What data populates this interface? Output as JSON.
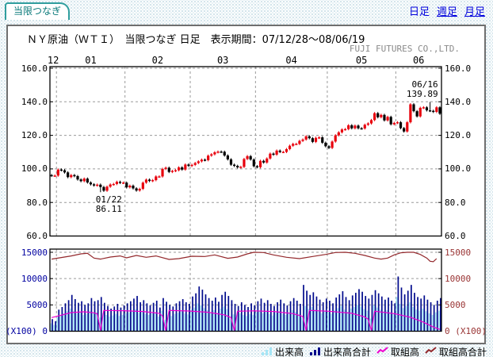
{
  "tab": {
    "label": "当限つなぎ"
  },
  "nav_links": {
    "daily": "日足",
    "weekly": "週足",
    "monthly": "月足"
  },
  "header": {
    "title": "ＮＹ原油（ＷＴＩ）　当限つなぎ 日足　表示期間：07/12/28～08/06/19",
    "company": "FUJI FUTURES CO.,LTD."
  },
  "colors": {
    "link": "#0000dd",
    "tab_border": "#2f9e9e",
    "tab_text": "#067878",
    "panel_border": "#6f6f6f",
    "grid": "#9a9a9a",
    "up": "#e8000c",
    "down": "#000000",
    "volume_front": "#a6e6f6",
    "volume_total": "#000a8c",
    "oi_front": "#f000d0",
    "oi_total": "#93282c",
    "axis_price": "#000000",
    "axis_left_volume": "#0000a0",
    "axis_right_volume": "#993333"
  },
  "legend": {
    "items": [
      {
        "label": "出来高",
        "swatch": "bars",
        "color": "#a6e6f6"
      },
      {
        "label": "出来高合計",
        "swatch": "bars",
        "color": "#000a8c"
      },
      {
        "label": "取組高",
        "swatch": "line",
        "color": "#f000d0"
      },
      {
        "label": "取組高合計",
        "swatch": "line",
        "color": "#93282c"
      }
    ]
  },
  "chart_data": [
    {
      "type": "candlestick",
      "title": "ＮＹ原油（ＷＴＩ）当限つなぎ 日足",
      "period": "07/12/28～08/06/19",
      "months": [
        "12",
        "01",
        "02",
        "03",
        "04",
        "05",
        "06"
      ],
      "month_start_indices": [
        0,
        2,
        23,
        43,
        63,
        85,
        106
      ],
      "yticks": [
        "160.0",
        "140.0",
        "120.0",
        "100.0",
        "80.0",
        "60.0"
      ],
      "ytick_values": [
        160,
        140,
        120,
        100,
        80,
        60
      ],
      "ylim": [
        60,
        160
      ],
      "grid": true,
      "first_open": 96.3,
      "default_wick": 0.7,
      "closes": [
        96.0,
        96.0,
        99.6,
        99.2,
        97.9,
        95.1,
        96.3,
        95.7,
        93.7,
        92.7,
        94.2,
        91.9,
        90.8,
        90.1,
        90.6,
        89.2,
        87.0,
        89.4,
        90.7,
        91.0,
        92.3,
        91.7,
        91.8,
        89.0,
        90.0,
        88.4,
        87.1,
        88.1,
        91.8,
        93.6,
        92.8,
        93.3,
        95.5,
        95.5,
        100.0,
        100.7,
        98.2,
        98.8,
        99.2,
        100.9,
        99.6,
        102.6,
        101.8,
        102.4,
        103.5,
        104.5,
        105.5,
        105.2,
        107.9,
        108.7,
        109.9,
        110.3,
        110.2,
        108.0,
        105.7,
        102.5,
        101.8,
        100.9,
        101.2,
        105.9,
        107.6,
        105.6,
        101.6,
        101.0,
        104.8,
        103.8,
        106.2,
        109.1,
        108.5,
        110.9,
        110.1,
        110.1,
        111.8,
        113.8,
        114.9,
        114.9,
        116.7,
        117.5,
        119.4,
        118.3,
        116.1,
        118.5,
        118.8,
        115.6,
        113.5,
        112.5,
        116.3,
        120.0,
        121.8,
        123.5,
        123.7,
        126.0,
        124.2,
        125.8,
        124.2,
        124.1,
        126.3,
        127.1,
        129.1,
        133.2,
        130.8,
        132.2,
        128.9,
        131.0,
        126.6,
        127.4,
        127.8,
        124.3,
        122.3,
        127.8,
        138.5,
        134.4,
        131.3,
        136.4,
        136.7,
        134.9,
        134.6,
        134.0,
        136.7,
        132.9
      ],
      "specials": {
        "15": {
          "low": 86.11
        },
        "116": {
          "high": 139.89
        }
      },
      "annotations": [
        {
          "index": 15,
          "price": 86.11,
          "lines": [
            "01/22",
            "86.11"
          ],
          "position": "below"
        },
        {
          "index": 116,
          "price": 139.89,
          "lines": [
            "06/16",
            "139.89"
          ],
          "position": "above"
        }
      ]
    },
    {
      "type": "bar",
      "yticks": [
        "15000",
        "10000",
        "5000"
      ],
      "ytick_values": [
        15000,
        10000,
        5000
      ],
      "left_zero_label": "(X100) 0",
      "right_zero_label": "0 (X100)",
      "ylim": [
        0,
        15000
      ],
      "grid": true,
      "series": [
        {
          "name": "出来高",
          "type": "bar",
          "color": "#a6e6f6",
          "values": [
            1500,
            1200,
            2700,
            3000,
            3400,
            3800,
            4300,
            3900,
            3400,
            3600,
            3100,
            3300,
            3900,
            3500,
            3600,
            2600,
            3400,
            3100,
            2800,
            3000,
            3300,
            2900,
            3100,
            3400,
            3600,
            3900,
            4200,
            3500,
            3700,
            3300,
            3100,
            3400,
            3600,
            2800,
            3900,
            2200,
            3100,
            2900,
            3300,
            3500,
            3800,
            3400,
            3200,
            4100,
            4500,
            5300,
            4900,
            4400,
            4000,
            3600,
            4000,
            3500,
            4300,
            4700,
            4200,
            2400,
            3200,
            3000,
            3400,
            3100,
            2900,
            3300,
            3100,
            3600,
            3900,
            3400,
            3700,
            3300,
            3000,
            3500,
            3800,
            3300,
            3100,
            3600,
            4000,
            3700,
            3300,
            2600,
            4800,
            4300,
            4600,
            4100,
            3800,
            3400,
            3900,
            3600,
            3300,
            4000,
            4400,
            4800,
            4100,
            3700,
            4300,
            4600,
            5000,
            4700,
            4200,
            3900,
            2400,
            4900,
            4500,
            4100,
            3800,
            4000,
            3600,
            3300,
            6500,
            5200,
            4400,
            4800,
            5500,
            4600,
            4100,
            3900,
            4300,
            3800,
            3400,
            3100,
            3600,
            3900
          ]
        },
        {
          "name": "出来高合計",
          "type": "bar",
          "color": "#000a8c",
          "values": [
            2300,
            1900,
            4100,
            4600,
            5300,
            5900,
            6900,
            6100,
            5400,
            5700,
            5000,
            5300,
            6300,
            5700,
            5900,
            6500,
            5400,
            4800,
            4300,
            4700,
            5200,
            4500,
            4900,
            5300,
            5700,
            6200,
            6700,
            5500,
            5900,
            5300,
            4900,
            5400,
            5800,
            4500,
            6300,
            5600,
            5000,
            4700,
            5300,
            5700,
            6100,
            5500,
            5200,
            6600,
            7200,
            8500,
            7900,
            7000,
            6300,
            5800,
            6400,
            5600,
            6900,
            7500,
            6700,
            5900,
            5200,
            4800,
            5500,
            5000,
            4600,
            5300,
            4900,
            5700,
            6200,
            5400,
            5900,
            5200,
            4800,
            5500,
            6000,
            5300,
            4900,
            5700,
            6300,
            5800,
            5200,
            8800,
            7700,
            6900,
            7400,
            6600,
            6000,
            5500,
            6200,
            5800,
            5300,
            6400,
            7000,
            7600,
            6500,
            5900,
            6800,
            7300,
            8000,
            7500,
            6700,
            6200,
            6900,
            7800,
            7200,
            6600,
            6000,
            6400,
            5800,
            5300,
            10400,
            8300,
            7000,
            7700,
            8800,
            7300,
            6500,
            6200,
            6800,
            6000,
            5500,
            5000,
            5800,
            6300
          ]
        },
        {
          "name": "取組高",
          "type": "line",
          "color": "#f000d0",
          "points": [
            [
              0,
              2600
            ],
            [
              2,
              2900
            ],
            [
              6,
              3550
            ],
            [
              10,
              3700
            ],
            [
              13,
              3500
            ],
            [
              14,
              3300
            ],
            [
              15,
              150
            ],
            [
              16,
              3950
            ],
            [
              22,
              3900
            ],
            [
              28,
              3750
            ],
            [
              33,
              3400
            ],
            [
              34,
              2900
            ],
            [
              35,
              150
            ],
            [
              36,
              3950
            ],
            [
              42,
              3850
            ],
            [
              48,
              3600
            ],
            [
              53,
              3100
            ],
            [
              55,
              2600
            ],
            [
              56,
              150
            ],
            [
              57,
              3800
            ],
            [
              62,
              3880
            ],
            [
              68,
              3750
            ],
            [
              74,
              3350
            ],
            [
              77,
              2800
            ],
            [
              78,
              150
            ],
            [
              79,
              3950
            ],
            [
              85,
              3800
            ],
            [
              92,
              3400
            ],
            [
              96,
              2700
            ],
            [
              97,
              2300
            ],
            [
              98,
              150
            ],
            [
              99,
              3800
            ],
            [
              105,
              3350
            ],
            [
              110,
              2650
            ],
            [
              114,
              1700
            ],
            [
              117,
              800
            ],
            [
              119,
              350
            ]
          ]
        },
        {
          "name": "取組高合計",
          "type": "line",
          "color": "#93282c",
          "points": [
            [
              0,
              13700
            ],
            [
              3,
              14000
            ],
            [
              6,
              14300
            ],
            [
              9,
              14700
            ],
            [
              11,
              14800
            ],
            [
              13,
              13900
            ],
            [
              15,
              13700
            ],
            [
              18,
              14100
            ],
            [
              21,
              14300
            ],
            [
              23,
              13950
            ],
            [
              26,
              14400
            ],
            [
              29,
              14050
            ],
            [
              32,
              14300
            ],
            [
              36,
              13650
            ],
            [
              39,
              13800
            ],
            [
              43,
              14250
            ],
            [
              47,
              14200
            ],
            [
              50,
              14500
            ],
            [
              54,
              13850
            ],
            [
              57,
              14100
            ],
            [
              60,
              14700
            ],
            [
              62,
              15000
            ],
            [
              65,
              14950
            ],
            [
              68,
              14500
            ],
            [
              72,
              14050
            ],
            [
              76,
              13800
            ],
            [
              80,
              14200
            ],
            [
              84,
              14600
            ],
            [
              87,
              14950
            ],
            [
              90,
              15000
            ],
            [
              93,
              14800
            ],
            [
              96,
              14400
            ],
            [
              99,
              13900
            ],
            [
              101,
              13700
            ],
            [
              103,
              13900
            ],
            [
              105,
              14500
            ],
            [
              107,
              14900
            ],
            [
              109,
              15000
            ],
            [
              111,
              15000
            ],
            [
              113,
              14600
            ],
            [
              115,
              13900
            ],
            [
              116,
              13300
            ],
            [
              117,
              13200
            ],
            [
              118,
              13800
            ]
          ]
        }
      ]
    }
  ]
}
